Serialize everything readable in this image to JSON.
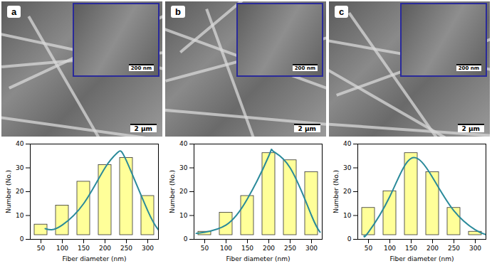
{
  "chart_data": [
    {
      "type": "histogram",
      "annotations": [
        "a",
        "200 nm",
        "2 μm"
      ],
      "bins": [
        25,
        75,
        125,
        175,
        225,
        275,
        325
      ],
      "counts": [
        8,
        16,
        26,
        33,
        36,
        20
      ],
      "color": "#ffff99",
      "fit": {
        "type": "line",
        "color": "#2a8a9a",
        "x": [
          60,
          75,
          100,
          150,
          200,
          230,
          250,
          300,
          325
        ],
        "values": [
          4.5,
          4,
          6,
          15,
          30,
          36.5,
          33,
          12,
          4
        ]
      },
      "xlabel": "Fiber diameter (nm)",
      "ylabel": "Number (No.)",
      "xlim": [
        25,
        325
      ],
      "ylim": [
        0,
        40
      ],
      "xticks": [
        50,
        100,
        150,
        200,
        250,
        300
      ],
      "yticks": [
        0,
        10,
        20,
        30,
        40
      ]
    },
    {
      "type": "histogram",
      "annotations": [
        "b",
        "200 nm",
        "2 μm"
      ],
      "bins": [
        25,
        75,
        125,
        175,
        225,
        275,
        325
      ],
      "counts": [
        5,
        13,
        20,
        38,
        35,
        30
      ],
      "color": "#ffff99",
      "fit": {
        "type": "line",
        "color": "#2a8a9a",
        "x": [
          30,
          50,
          100,
          150,
          200,
          210,
          250,
          300,
          320
        ],
        "values": [
          2.5,
          3,
          6,
          17,
          35,
          37,
          30,
          10,
          3
        ]
      },
      "xlabel": "Fiber diameter (nm)",
      "ylabel": "Number (No.)",
      "xlim": [
        25,
        325
      ],
      "ylim": [
        0,
        40
      ],
      "xticks": [
        50,
        100,
        150,
        200,
        250,
        300
      ],
      "yticks": [
        0,
        10,
        20,
        30,
        40
      ]
    },
    {
      "type": "histogram",
      "annotations": [
        "c",
        "200 nm",
        "2 μm"
      ],
      "bins": [
        25,
        75,
        125,
        175,
        225,
        275,
        325
      ],
      "counts": [
        15,
        22,
        38,
        30,
        15,
        5
      ],
      "color": "#ffff99",
      "fit": {
        "type": "line",
        "color": "#2a8a9a",
        "x": [
          40,
          50,
          100,
          150,
          200,
          250,
          300,
          325
        ],
        "values": [
          1.5,
          3,
          18,
          34,
          26,
          12,
          4,
          2
        ]
      },
      "xlabel": "Fiber diameter (nm)",
      "ylabel": "Number (No.)",
      "xlim": [
        25,
        325
      ],
      "ylim": [
        0,
        40
      ],
      "xticks": [
        50,
        100,
        150,
        200,
        250,
        300
      ],
      "yticks": [
        0,
        10,
        20,
        30,
        40
      ]
    }
  ]
}
